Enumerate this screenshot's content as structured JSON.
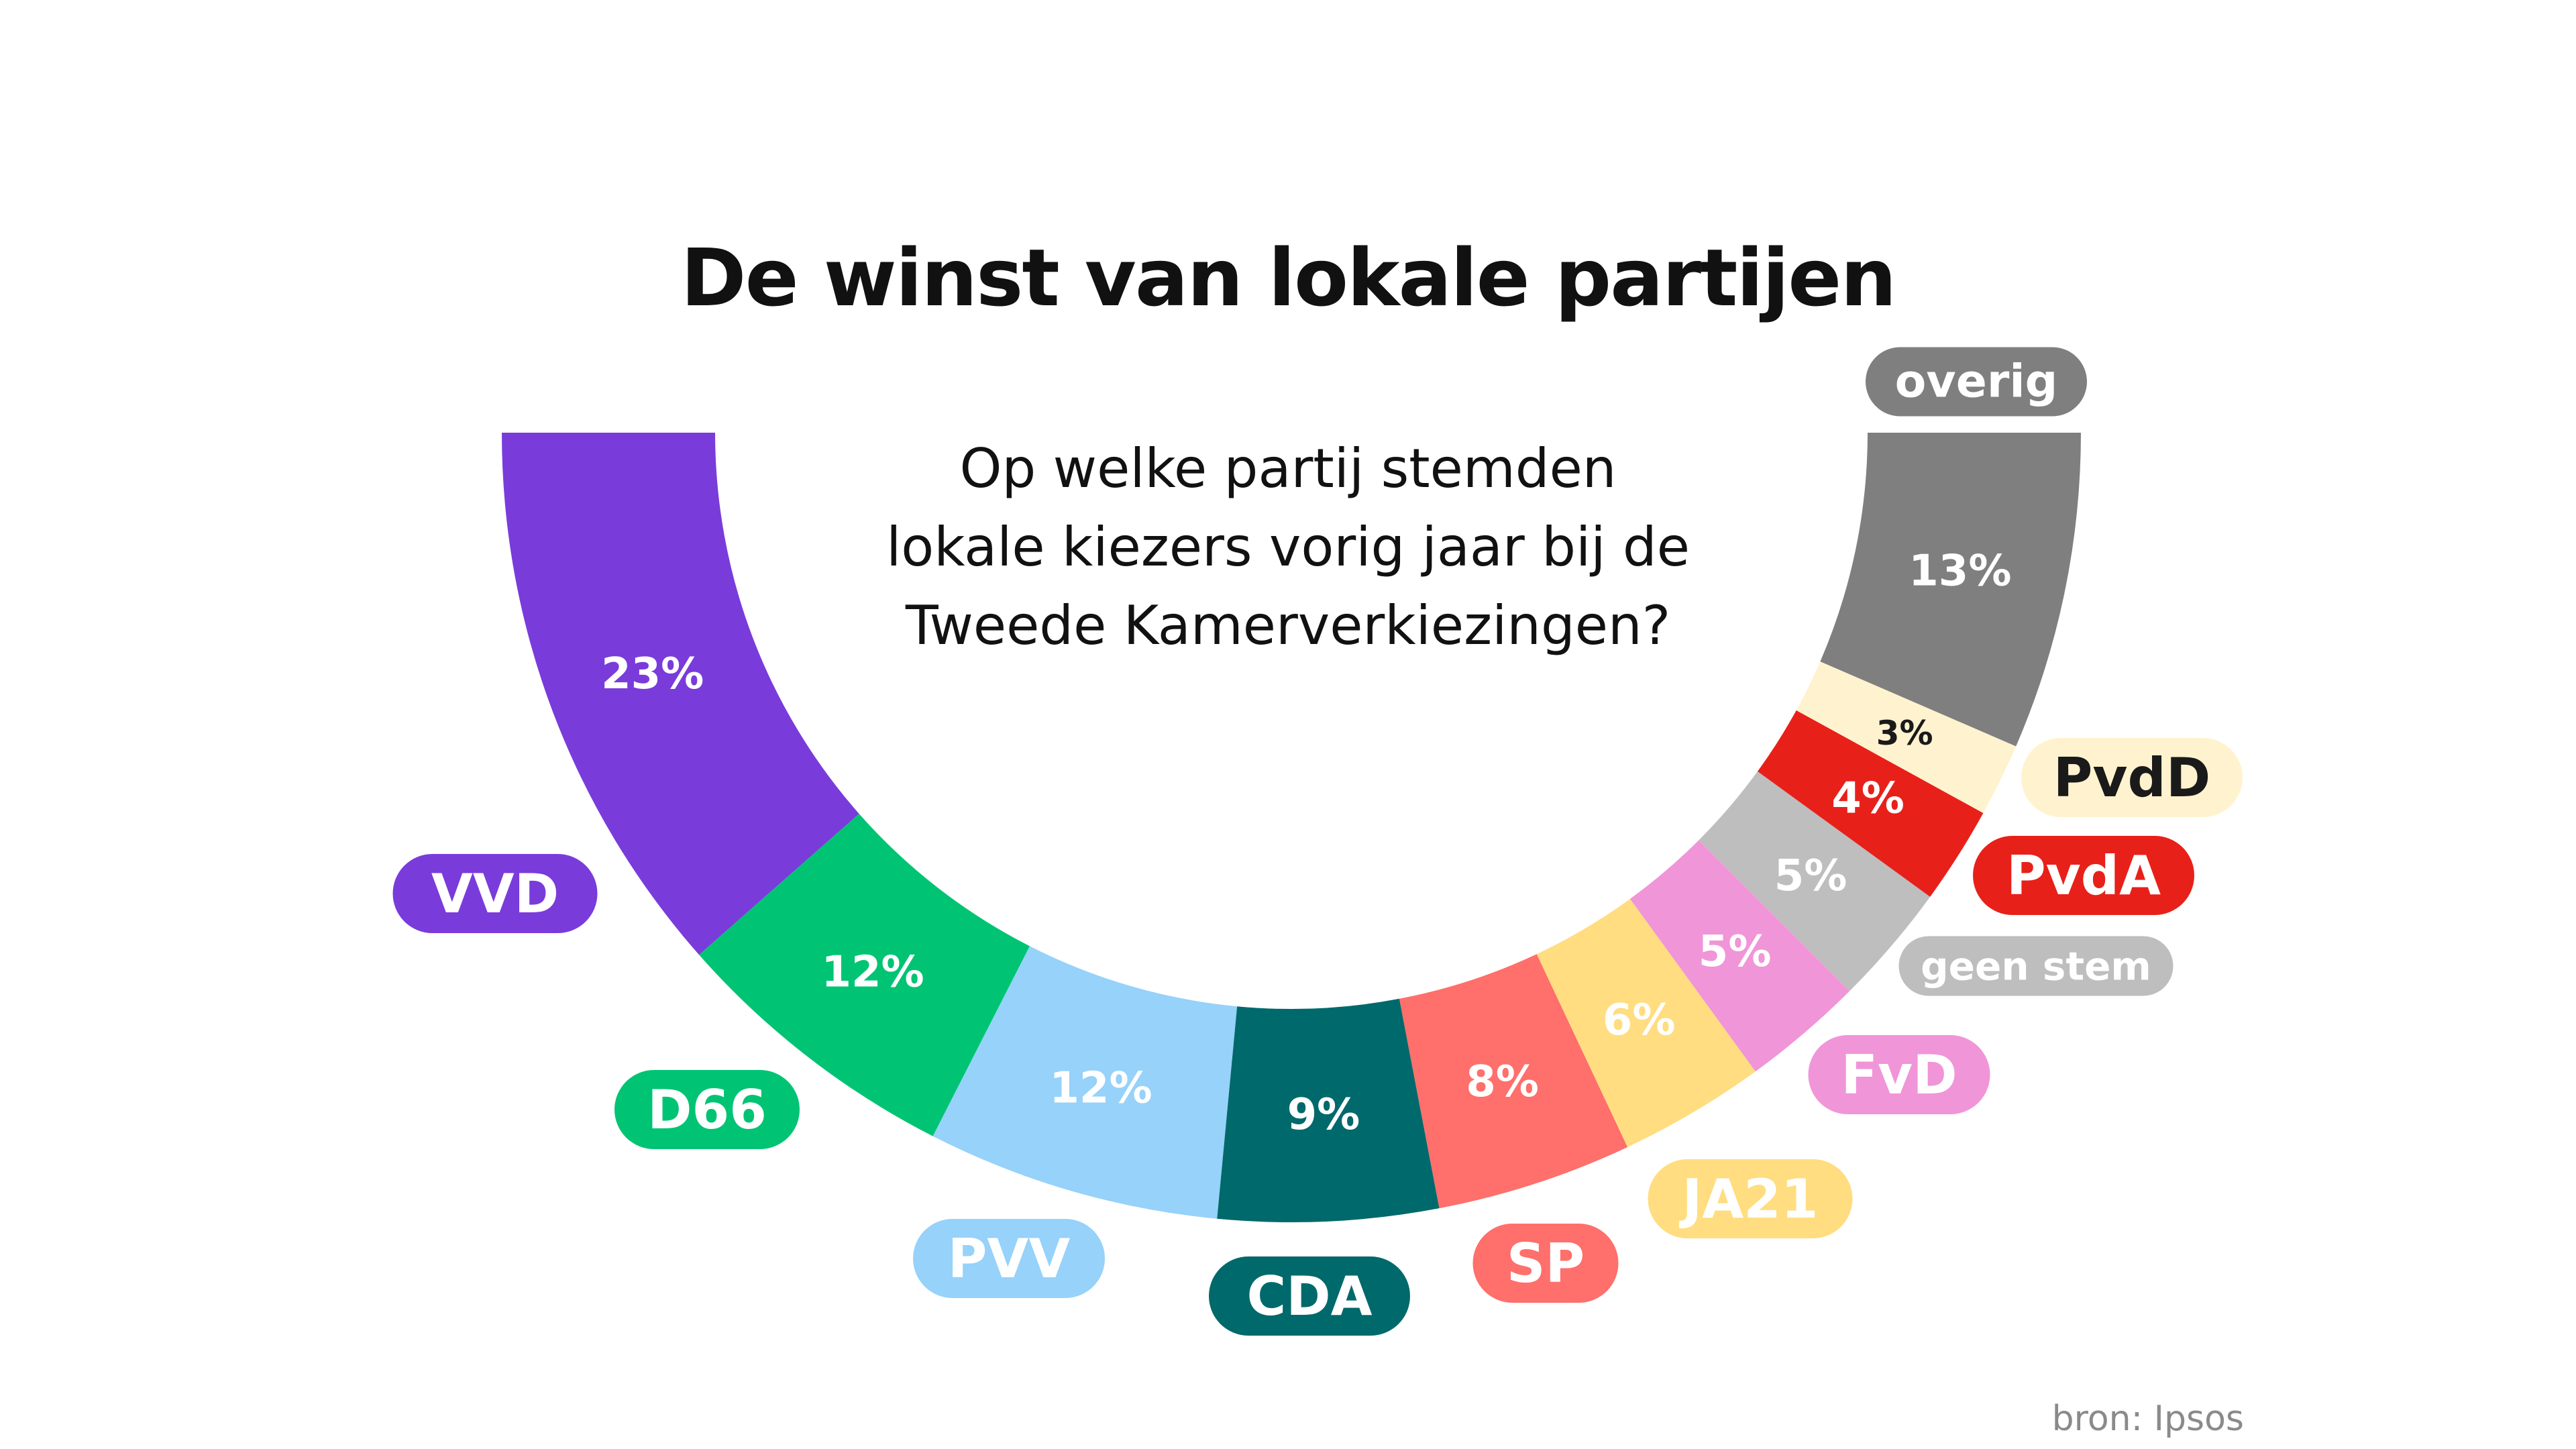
{
  "chart_data": {
    "type": "pie",
    "variant": "semicircle-donut",
    "title": "De winst van lokale partijen",
    "subtitle": [
      "Op welke partij stemden",
      "lokale kiezers vorig jaar bij de",
      "Tweede Kamerverkiezingen?"
    ],
    "unit": "%",
    "slices": [
      {
        "label": "VVD",
        "value": 23,
        "value_label": "23%",
        "color": "#7A3BDB",
        "text_color": "#ffffff"
      },
      {
        "label": "D66",
        "value": 12,
        "value_label": "12%",
        "color": "#00C473",
        "text_color": "#ffffff"
      },
      {
        "label": "PVV",
        "value": 12,
        "value_label": "12%",
        "color": "#96D2FA",
        "text_color": "#ffffff"
      },
      {
        "label": "CDA",
        "value": 9,
        "value_label": "9%",
        "color": "#00696B",
        "text_color": "#ffffff"
      },
      {
        "label": "SP",
        "value": 8,
        "value_label": "8%",
        "color": "#FF6F6B",
        "text_color": "#ffffff"
      },
      {
        "label": "JA21",
        "value": 6,
        "value_label": "6%",
        "color": "#FFDD80",
        "text_color": "#ffffff"
      },
      {
        "label": "FvD",
        "value": 5,
        "value_label": "5%",
        "color": "#F095D8",
        "text_color": "#ffffff"
      },
      {
        "label": "geen stem",
        "value": 5,
        "value_label": "5%",
        "color": "#BEBEBE",
        "text_color": "#ffffff"
      },
      {
        "label": "PvdA",
        "value": 4,
        "value_label": "4%",
        "color": "#E8201A",
        "text_color": "#ffffff"
      },
      {
        "label": "PvdD",
        "value": 3,
        "value_label": "3%",
        "color": "#FFF3CF",
        "text_color": "#1a1a1a"
      },
      {
        "label": "overig",
        "value": 13,
        "value_label": "13%",
        "color": "#7F7F7F",
        "text_color": "#ffffff"
      }
    ],
    "source": "bron: Ipsos"
  }
}
